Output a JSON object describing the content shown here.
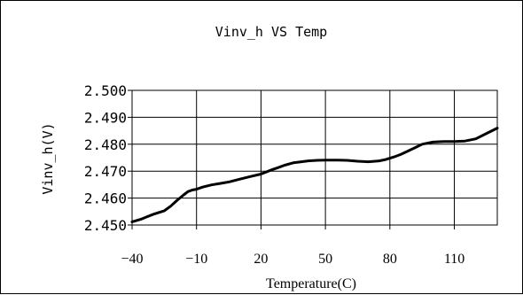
{
  "chart_data": {
    "type": "line",
    "title": "Vinv_h VS Temp",
    "xlabel": "Temperature(C)",
    "ylabel": "Vinv_h(V)",
    "xlim": [
      -40,
      130
    ],
    "ylim": [
      2.45,
      2.5
    ],
    "x_ticks": [
      -40,
      -10,
      20,
      50,
      80,
      110
    ],
    "x_tick_labels": [
      "−40",
      "−10",
      "20",
      "50",
      "80",
      "110"
    ],
    "y_ticks": [
      2.45,
      2.46,
      2.47,
      2.48,
      2.49,
      2.5
    ],
    "y_tick_labels": [
      "2.450",
      "2.460",
      "2.470",
      "2.480",
      "2.490",
      "2.500"
    ],
    "grid": true,
    "legend": "none",
    "series": [
      {
        "color": "#000000",
        "x": [
          -40,
          -36,
          -33,
          -30,
          -25,
          -22,
          -19,
          -16,
          -14,
          -12,
          -10,
          -7,
          -3,
          0,
          5,
          10,
          15,
          20,
          25,
          28,
          31,
          35,
          38,
          42,
          46,
          50,
          55,
          60,
          65,
          70,
          75,
          78,
          82,
          85,
          88,
          92,
          95,
          100,
          105,
          110,
          115,
          120,
          125,
          130
        ],
        "y": [
          2.4512,
          2.4521,
          2.4531,
          2.454,
          2.4553,
          2.457,
          2.4592,
          2.4612,
          2.4624,
          2.463,
          2.4633,
          2.4641,
          2.4649,
          2.4653,
          2.466,
          2.467,
          2.468,
          2.4689,
          2.4705,
          2.4713,
          2.4722,
          2.4731,
          2.4734,
          2.4738,
          2.474,
          2.4741,
          2.4741,
          2.474,
          2.4737,
          2.4735,
          2.4738,
          2.4743,
          2.4753,
          2.4762,
          2.4773,
          2.4788,
          2.48,
          2.4808,
          2.481,
          2.481,
          2.4812,
          2.482,
          2.484,
          2.486
        ]
      }
    ]
  }
}
